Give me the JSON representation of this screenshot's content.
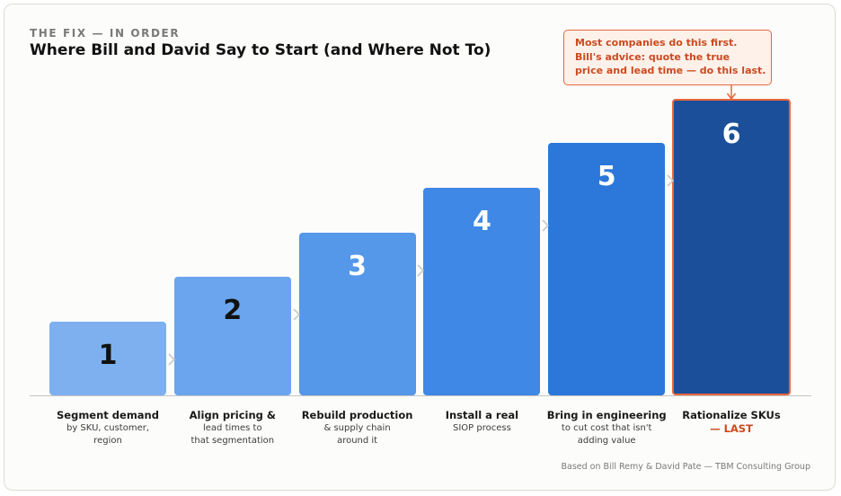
{
  "header": {
    "eyebrow": "THE FIX — IN ORDER",
    "title": "Where Bill and David Say to Start (and Where Not To)"
  },
  "callout": {
    "lines": [
      "Most companies do this first.",
      "Bill's advice: quote the true",
      "price and lead time — do this last."
    ],
    "accent_color": "#cc4a1f"
  },
  "steps": [
    {
      "number": "1",
      "title": "Segment demand",
      "sub": [
        "by SKU, customer,",
        "region"
      ],
      "color": "#7eb0ef",
      "number_color": "#111111",
      "level": 1
    },
    {
      "number": "2",
      "title": "Align pricing &",
      "sub": [
        "lead times to",
        "that segmentation"
      ],
      "color": "#6ba5ed",
      "number_color": "#111111",
      "level": 2
    },
    {
      "number": "3",
      "title": "Rebuild production",
      "sub": [
        "& supply chain",
        "around it"
      ],
      "color": "#5597e9",
      "number_color": "#ffffff",
      "level": 3
    },
    {
      "number": "4",
      "title": "Install a real",
      "sub": [
        "SIOP process"
      ],
      "color": "#3f88e5",
      "number_color": "#ffffff",
      "level": 4
    },
    {
      "number": "5",
      "title": "Bring in engineering",
      "sub": [
        "to cut cost that isn't",
        "adding value"
      ],
      "color": "#2b78da",
      "number_color": "#ffffff",
      "level": 5
    },
    {
      "number": "6",
      "title": "Rationalize SKUs",
      "sub": [],
      "tag": "— LAST",
      "color": "#1b4f9a",
      "number_color": "#ffffff",
      "level": 6,
      "highlight_border": "#e8673f"
    }
  ],
  "footer": {
    "source": "Based on Bill Remy & David Pate — TBM Consulting Group"
  }
}
